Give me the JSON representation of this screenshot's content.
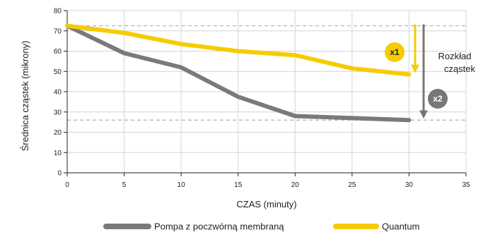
{
  "chart_data": {
    "type": "line",
    "title": "",
    "xlabel": "CZAS (minuty)",
    "ylabel": "Średnica cząstek (mikrony)",
    "xlim": [
      0,
      35
    ],
    "ylim": [
      0,
      80
    ],
    "xticks": [
      0,
      5,
      10,
      15,
      20,
      25,
      30,
      35
    ],
    "yticks": [
      0,
      10,
      20,
      30,
      40,
      50,
      60,
      70,
      80
    ],
    "grid": true,
    "legend_position": "bottom",
    "series": [
      {
        "name": "Pompa z poczwórną membraną",
        "color": "#7a7a7a",
        "x": [
          0,
          5,
          10,
          15,
          20,
          25,
          30
        ],
        "y": [
          72.5,
          59,
          52,
          37.5,
          28,
          27,
          26
        ]
      },
      {
        "name": "Quantum",
        "color": "#f5cc00",
        "x": [
          0,
          5,
          10,
          15,
          20,
          25,
          30
        ],
        "y": [
          72.5,
          69,
          63.5,
          60,
          58,
          51.5,
          48.5
        ]
      }
    ],
    "reference_lines": [
      {
        "y": 72.5,
        "style": "dashed"
      },
      {
        "y": 26,
        "style": "dashed"
      }
    ],
    "annotations": {
      "distribution_label": [
        "Rozkład",
        "cząstek"
      ],
      "badge_1": "x1",
      "badge_2": "x2"
    }
  }
}
